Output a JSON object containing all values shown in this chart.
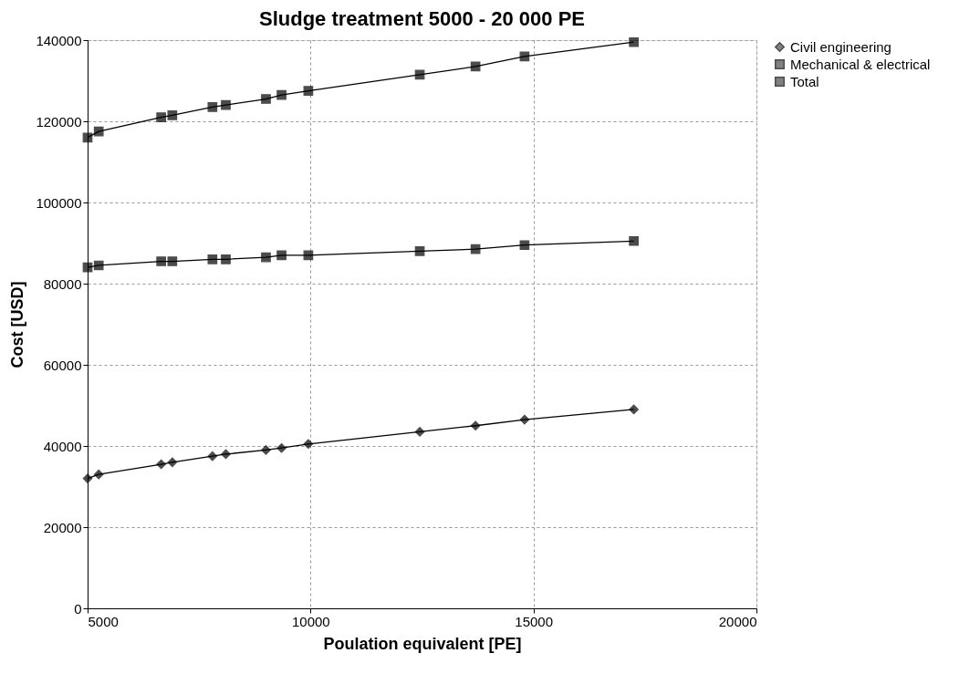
{
  "chart_data": {
    "type": "line",
    "title": "Sludge treatment 5000 - 20 000 PE",
    "xlabel": "Poulation equivalent [PE]",
    "ylabel": "Cost [USD]",
    "x": [
      5000,
      5250,
      6650,
      6900,
      7800,
      8100,
      9000,
      9350,
      9950,
      12450,
      13700,
      14800,
      17250
    ],
    "series": [
      {
        "name": "Civil engineering",
        "color": "#000000",
        "marker": "diamond",
        "values": [
          32000,
          33000,
          35500,
          36000,
          37500,
          38000,
          39000,
          39500,
          40500,
          43500,
          45000,
          46500,
          49000
        ]
      },
      {
        "name": "Mechanical & electrical",
        "color": "#000000",
        "marker": "square",
        "values": [
          84000,
          84500,
          85500,
          85500,
          86000,
          86000,
          86500,
          87000,
          87000,
          88000,
          88500,
          89500,
          90500
        ]
      },
      {
        "name": "Total",
        "color": "#000000",
        "marker": "square",
        "values": [
          116000,
          117500,
          121000,
          121500,
          123500,
          124000,
          125500,
          126500,
          127500,
          131500,
          133500,
          136000,
          139500
        ]
      }
    ],
    "xlim": [
      5000,
      20000
    ],
    "xticks": [
      5000,
      10000,
      15000,
      20000
    ],
    "ylim": [
      0,
      140000
    ],
    "yticks": [
      0,
      20000,
      40000,
      60000,
      80000,
      100000,
      120000,
      140000
    ],
    "grid": true,
    "legend": "right",
    "line_style": "solid"
  }
}
